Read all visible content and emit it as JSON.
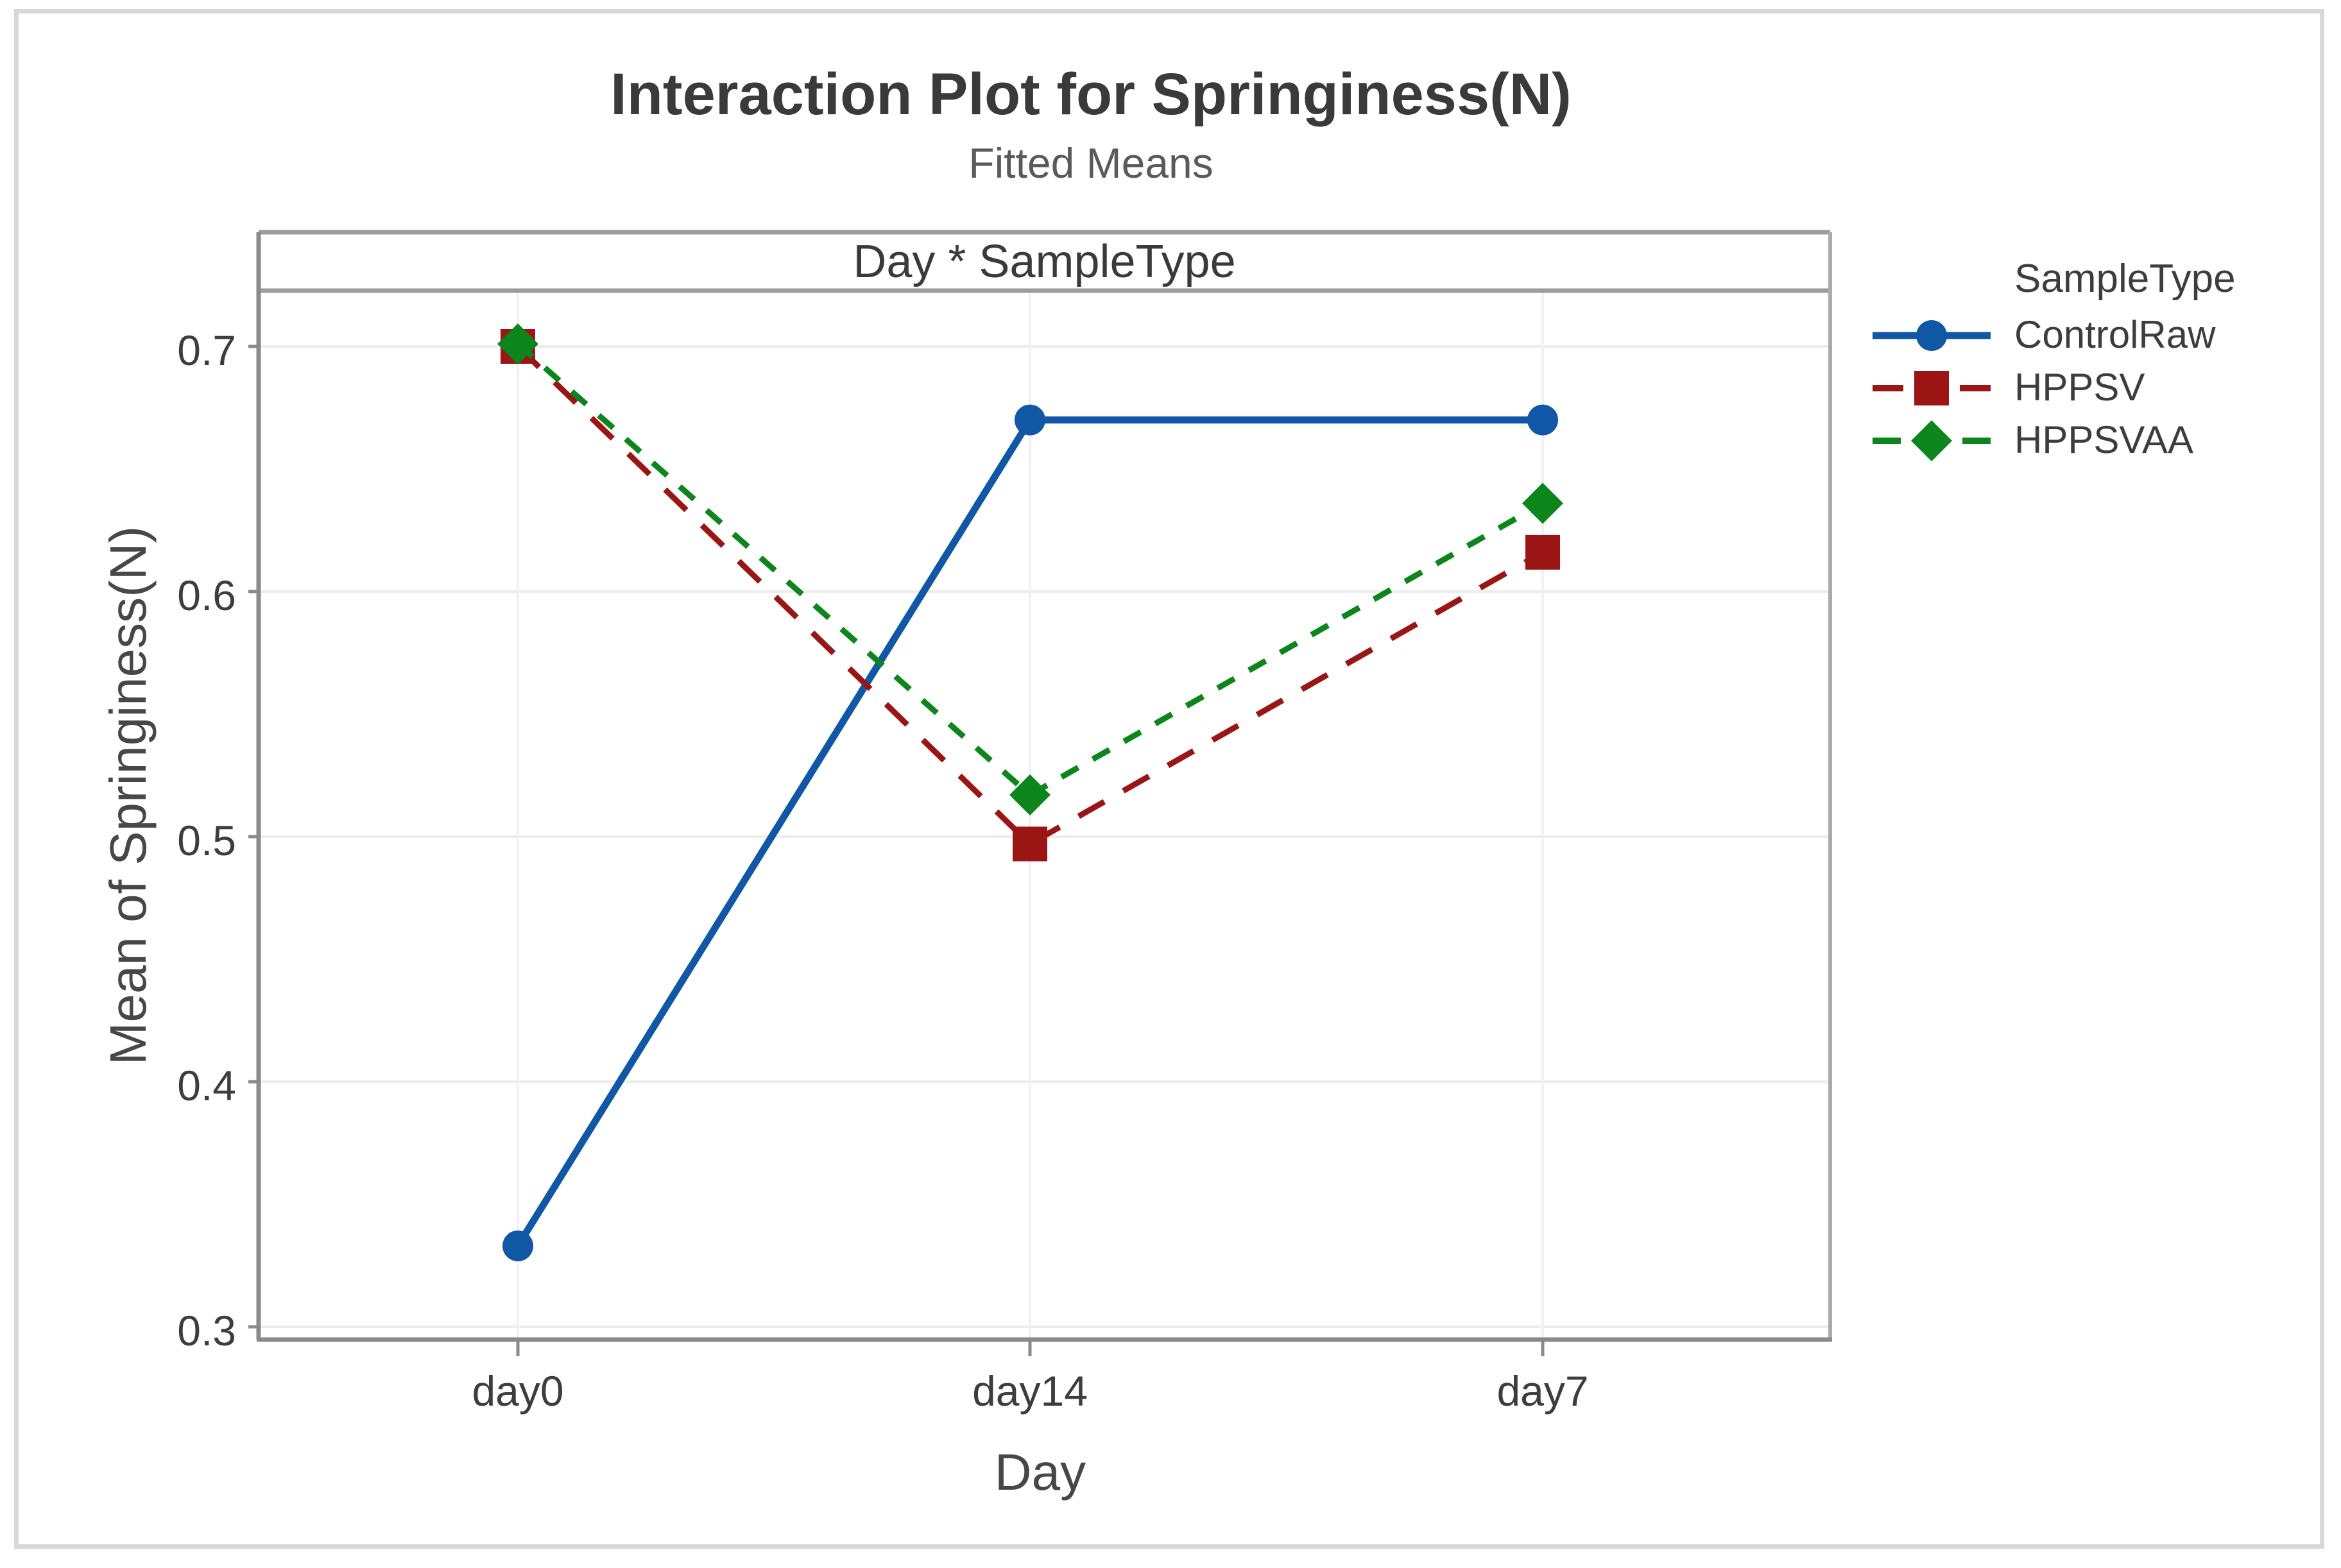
{
  "figure": {
    "title": "Interaction Plot for Springiness(N)",
    "subtitle": "Fitted Means",
    "panel_title": "Day * SampleType"
  },
  "axes": {
    "x_title": "Day",
    "y_title": "Mean of Springiness(N)",
    "x_category_labels": [
      "day0",
      "day14",
      "day7"
    ],
    "y_tick_labels": [
      "0.7",
      "0.6",
      "0.5",
      "0.4",
      "0.3"
    ]
  },
  "legend": {
    "title": "SampleType",
    "entries": [
      {
        "label": "ControlRaw",
        "color": "#1057a5",
        "marker": "circle",
        "line_style": "solid"
      },
      {
        "label": "HPPSV",
        "color": "#9b1515",
        "marker": "square",
        "line_style": "dashed"
      },
      {
        "label": "HPPSVAA",
        "color": "#0c861c",
        "marker": "diamond",
        "line_style": "short-dash"
      }
    ]
  },
  "chart_data": {
    "type": "line",
    "title": "Interaction Plot for Springiness(N)",
    "subtitle": "Fitted Means",
    "panel_label": "Day * SampleType",
    "categories": [
      "day0",
      "day14",
      "day7"
    ],
    "series": [
      {
        "name": "ControlRaw",
        "color": "#1057a5",
        "marker": "circle",
        "line_style": "solid",
        "values": [
          0.333,
          0.67,
          0.67
        ]
      },
      {
        "name": "HPPSV",
        "color": "#9b1515",
        "marker": "square",
        "line_style": "dashed",
        "values": [
          0.7,
          0.497,
          0.616
        ]
      },
      {
        "name": "HPPSVAA",
        "color": "#0c861c",
        "marker": "diamond",
        "line_style": "short-dash",
        "values": [
          0.701,
          0.517,
          0.636
        ]
      }
    ],
    "xlabel": "Day",
    "ylabel": "Mean of Springiness(N)",
    "ylim": [
      0.295,
      0.722
    ],
    "y_ticks": [
      0.3,
      0.4,
      0.5,
      0.6,
      0.7
    ],
    "grid": true,
    "legend_position": "right",
    "legend_title": "SampleType"
  },
  "style": {
    "grid_color": "#ededed",
    "frame_color": "#8a8a8a",
    "header_line_color": "#9c9c9c",
    "outer_border_color": "#d8d8d8",
    "title_color": "#3a3a3a",
    "subtitle_color": "#5a5a5a",
    "text_color": "#3d3d3d"
  }
}
